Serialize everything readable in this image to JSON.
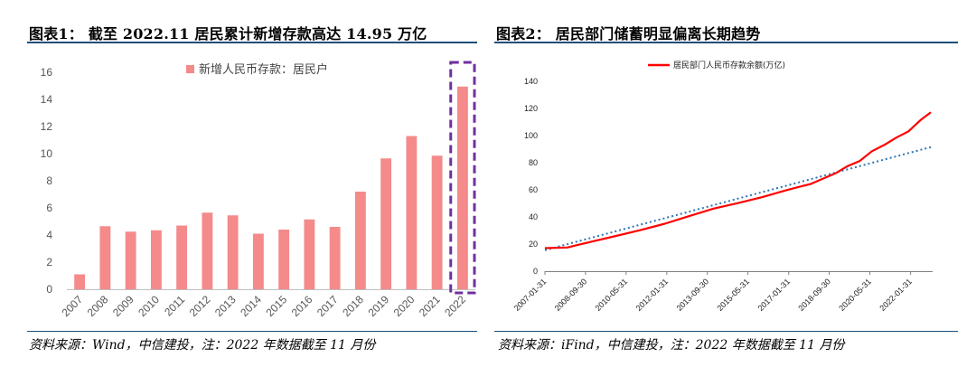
{
  "left": {
    "title": "图表1： 截至 2022.11 居民累计新增存款高达 14.95 万亿",
    "source": "资料来源：Wind，中信建投，注：2022 年数据截至 11 月份"
  },
  "right": {
    "title": "图表2： 居民部门储蓄明显偏离长期趋势",
    "source": "资料来源：iFind，中信建投，注：2022 年数据截至 11 月份"
  },
  "colors": {
    "bar": "#f48a8a",
    "highlight": "#7030a0",
    "line": "#ff0000",
    "trend": "#2e75b6",
    "rule": "#1f4e79"
  },
  "chart_data": [
    {
      "type": "bar",
      "legend": [
        "新增人民币存款：居民户"
      ],
      "categories": [
        "2007",
        "2008",
        "2009",
        "2010",
        "2011",
        "2012",
        "2013",
        "2014",
        "2015",
        "2016",
        "2017",
        "2018",
        "2019",
        "2020",
        "2021",
        "2022"
      ],
      "series": [
        {
          "name": "新增人民币存款：居民户",
          "values": [
            1.1,
            4.65,
            4.25,
            4.35,
            4.7,
            5.65,
            5.45,
            4.1,
            4.4,
            5.15,
            4.6,
            7.2,
            9.65,
            11.3,
            9.85,
            14.95
          ]
        }
      ],
      "ylim": [
        0,
        16
      ],
      "yticks": [
        0,
        2,
        4,
        6,
        8,
        10,
        12,
        14,
        16
      ],
      "highlight_category": "2022",
      "legend_position": "top-center",
      "grid": false
    },
    {
      "type": "line",
      "legend": [
        "居民部门人民币存款余额(万亿)"
      ],
      "x_ticks": [
        "2007-01-31",
        "2008-09-30",
        "2010-05-31",
        "2012-01-31",
        "2013-09-30",
        "2015-05-31",
        "2017-01-31",
        "2018-09-30",
        "2020-05-31",
        "2022-01-31"
      ],
      "x_range": [
        "2007-01-31",
        "2022-11-30"
      ],
      "ylim": [
        0,
        140
      ],
      "yticks": [
        0,
        20,
        40,
        60,
        80,
        100,
        120,
        140
      ],
      "series": [
        {
          "name": "居民部门人民币存款余额(万亿)",
          "x": [
            "2007-01-31",
            "2007-12-31",
            "2008-12-31",
            "2009-12-31",
            "2010-12-31",
            "2011-12-31",
            "2012-12-31",
            "2013-12-31",
            "2014-12-31",
            "2015-12-31",
            "2016-12-31",
            "2017-12-31",
            "2018-12-31",
            "2019-06-30",
            "2019-12-31",
            "2020-06-30",
            "2020-12-31",
            "2021-06-30",
            "2021-12-31",
            "2022-06-30",
            "2022-11-30"
          ],
          "y": [
            17,
            17.5,
            21.8,
            26,
            30.3,
            35,
            40.6,
            46.1,
            50.2,
            54.6,
            59.8,
            64.4,
            72.1,
            77.5,
            81.3,
            88.5,
            93.1,
            98.5,
            103.1,
            111.5,
            117.2
          ]
        },
        {
          "name": "trend",
          "x": [
            "2007-01-31",
            "2022-11-30"
          ],
          "y": [
            15.5,
            91.5
          ]
        }
      ],
      "legend_position": "top-center",
      "grid": false
    }
  ]
}
